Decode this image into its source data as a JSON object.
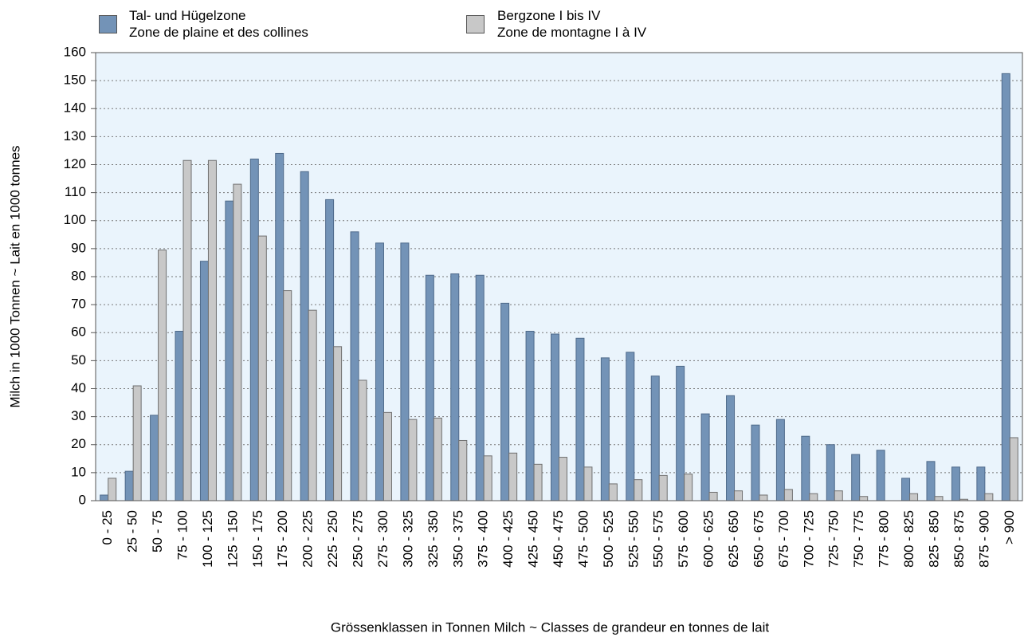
{
  "chart_data": {
    "type": "bar",
    "xlabel": "Grössenklassen in Tonnen Milch   ~   Classes de grandeur en tonnes de lait",
    "ylabel": "Milch in 1000 Tonnen   ~   Lait en 1000 tonnes",
    "categories": [
      "0 - 25",
      "25 - 50",
      "50 - 75",
      "75 - 100",
      "100 - 125",
      "125 - 150",
      "150 - 175",
      "175 - 200",
      "200 - 225",
      "225 - 250",
      "250 - 275",
      "275 - 300",
      "300 - 325",
      "325 - 350",
      "350 - 375",
      "375 - 400",
      "400 - 425",
      "425 - 450",
      "450 - 475",
      "475 - 500",
      "500 - 525",
      "525 - 550",
      "550 - 575",
      "575 - 600",
      "600 - 625",
      "625 - 650",
      "650 - 675",
      "675 - 700",
      "700 - 725",
      "725 - 750",
      "750 - 775",
      "775 - 800",
      "800 - 825",
      "825 - 850",
      "850 - 875",
      "875 - 900",
      "> 900"
    ],
    "series": [
      {
        "name": "Tal- und Hügelzone\nZone de plaine et des collines",
        "color": "#7393b7",
        "values": [
          2,
          10.5,
          30.5,
          60.5,
          85.5,
          107,
          122,
          124,
          117.5,
          107.5,
          96,
          92,
          92,
          80.5,
          81,
          80.5,
          70.5,
          60.5,
          59.5,
          58,
          51,
          53,
          44.5,
          48,
          31,
          37.5,
          27,
          29,
          23,
          20,
          16.5,
          18,
          8,
          14,
          12,
          12,
          152.5
        ]
      },
      {
        "name": "Bergzone I bis IV\nZone de montagne I à IV",
        "color": "#c8c8c8",
        "values": [
          8,
          41,
          89.5,
          121.5,
          121.5,
          113,
          94.5,
          75,
          68,
          55,
          43,
          31.5,
          29,
          29.5,
          21.5,
          16,
          17,
          13,
          15.5,
          12,
          6,
          7.5,
          9,
          9.5,
          3,
          3.5,
          2,
          4,
          2.5,
          3.5,
          1.5,
          0,
          2.5,
          1.5,
          0.5,
          2.5,
          22.5
        ]
      }
    ],
    "ylim": [
      0,
      160
    ],
    "yticks": [
      0,
      10,
      20,
      30,
      40,
      50,
      60,
      70,
      80,
      90,
      100,
      110,
      120,
      130,
      140,
      150,
      160
    ],
    "grid": true
  }
}
